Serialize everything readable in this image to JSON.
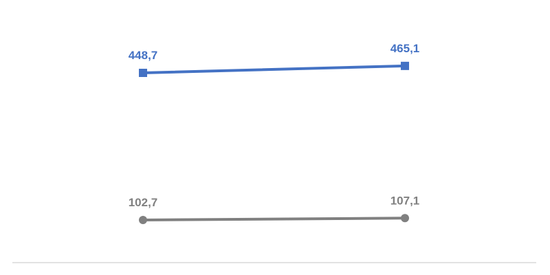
{
  "chart_data": {
    "type": "line",
    "title": "",
    "xlabel": "",
    "ylabel": "",
    "categories": [
      "",
      ""
    ],
    "series": [
      {
        "values": [
          448.7,
          465.1
        ],
        "labels": [
          "448,7",
          "465,1"
        ],
        "color": "#4472C4",
        "marker": "square"
      },
      {
        "values": [
          102.7,
          107.1
        ],
        "labels": [
          "102,7",
          "107,1"
        ],
        "color": "#808080",
        "marker": "circle"
      }
    ],
    "ylim": [
      0,
      550
    ],
    "grid": false,
    "legend": "none",
    "baseline_color": "#d9d9d9"
  }
}
